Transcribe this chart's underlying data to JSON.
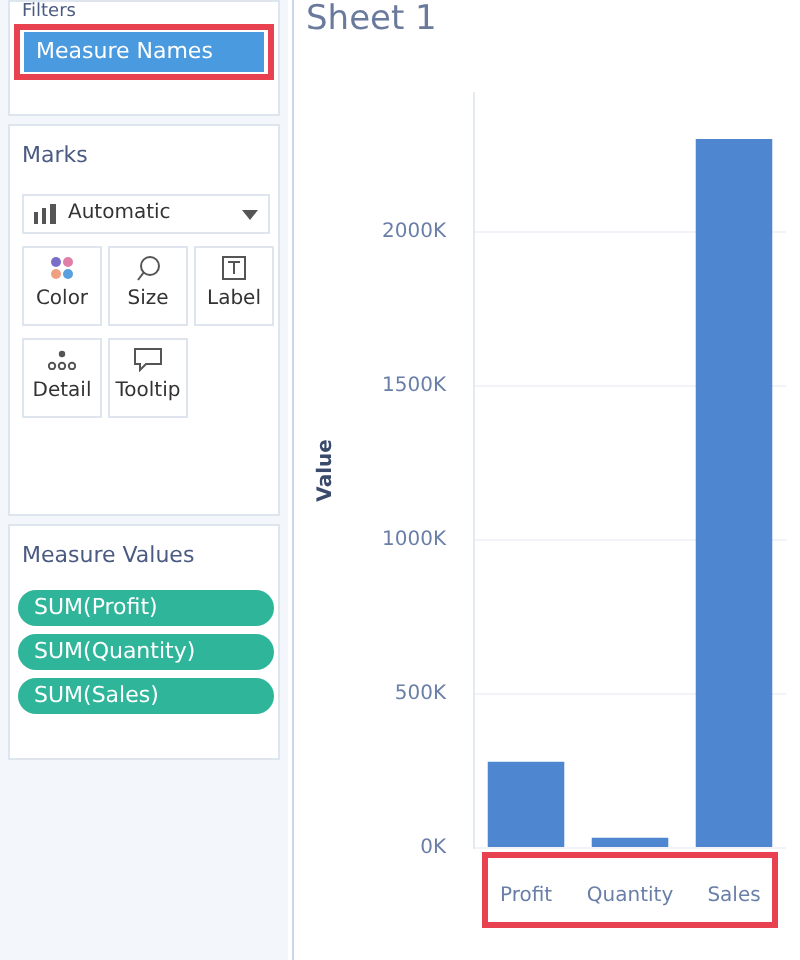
{
  "chart_data": [
    {
      "type": "other",
      "annotations": [
        "Filters",
        "Measure Names",
        "Marks",
        "Automatic",
        "Color",
        "Size",
        "Label",
        "Detail",
        "Tooltip",
        "Measure Values",
        "SUM(Profit)",
        "SUM(Quantity)",
        "SUM(Sales)"
      ]
    },
    {
      "type": "bar",
      "title": "Sheet 1",
      "ylabel": "Value",
      "categories": [
        "Profit",
        "Quantity",
        "Sales"
      ],
      "values": [
        280000,
        33000,
        2300000
      ],
      "color": "#4e86d0",
      "ylim": [
        0,
        2450000
      ],
      "yticks": [
        {
          "value": 0,
          "label": "0K"
        },
        {
          "value": 500000,
          "label": "500K"
        },
        {
          "value": 1000000,
          "label": "1000K"
        },
        {
          "value": 1500000,
          "label": "1500K"
        },
        {
          "value": 2000000,
          "label": "2000K"
        }
      ],
      "grid": "y"
    }
  ]
}
